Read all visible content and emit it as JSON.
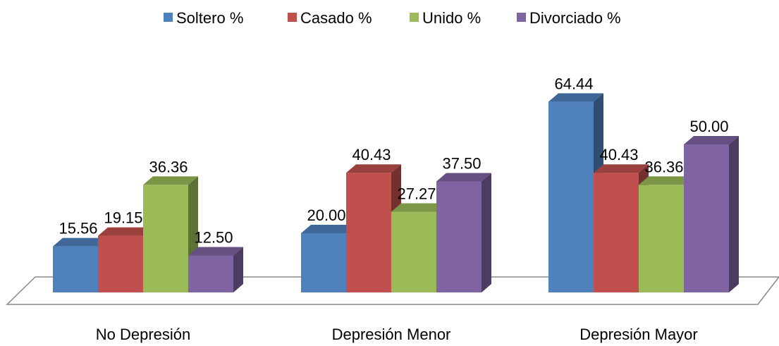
{
  "chart_data": {
    "type": "bar3d",
    "categories": [
      "No Depresión",
      "Depresión Menor",
      "Depresión Mayor"
    ],
    "series": [
      {
        "name": "Soltero %",
        "color": "#4f81bd",
        "values": [
          15.56,
          20,
          64.44
        ],
        "value_labels": [
          "15.56",
          "20.00",
          "64.44"
        ]
      },
      {
        "name": "Casado %",
        "color": "#c0504d",
        "values": [
          19.15,
          40.43,
          40.43
        ],
        "value_labels": [
          "19.15",
          "40.43",
          "40.43"
        ]
      },
      {
        "name": "Unido %",
        "color": "#9bbb59",
        "values": [
          36.36,
          27.27,
          36.36
        ],
        "value_labels": [
          "36.36",
          "27.27",
          "36.36"
        ]
      },
      {
        "name": "Divorciado %",
        "color": "#8064a2",
        "values": [
          12.5,
          37.5,
          50
        ],
        "value_labels": [
          "12.50",
          "37.50",
          "50.00"
        ]
      }
    ],
    "legend": "top"
  }
}
